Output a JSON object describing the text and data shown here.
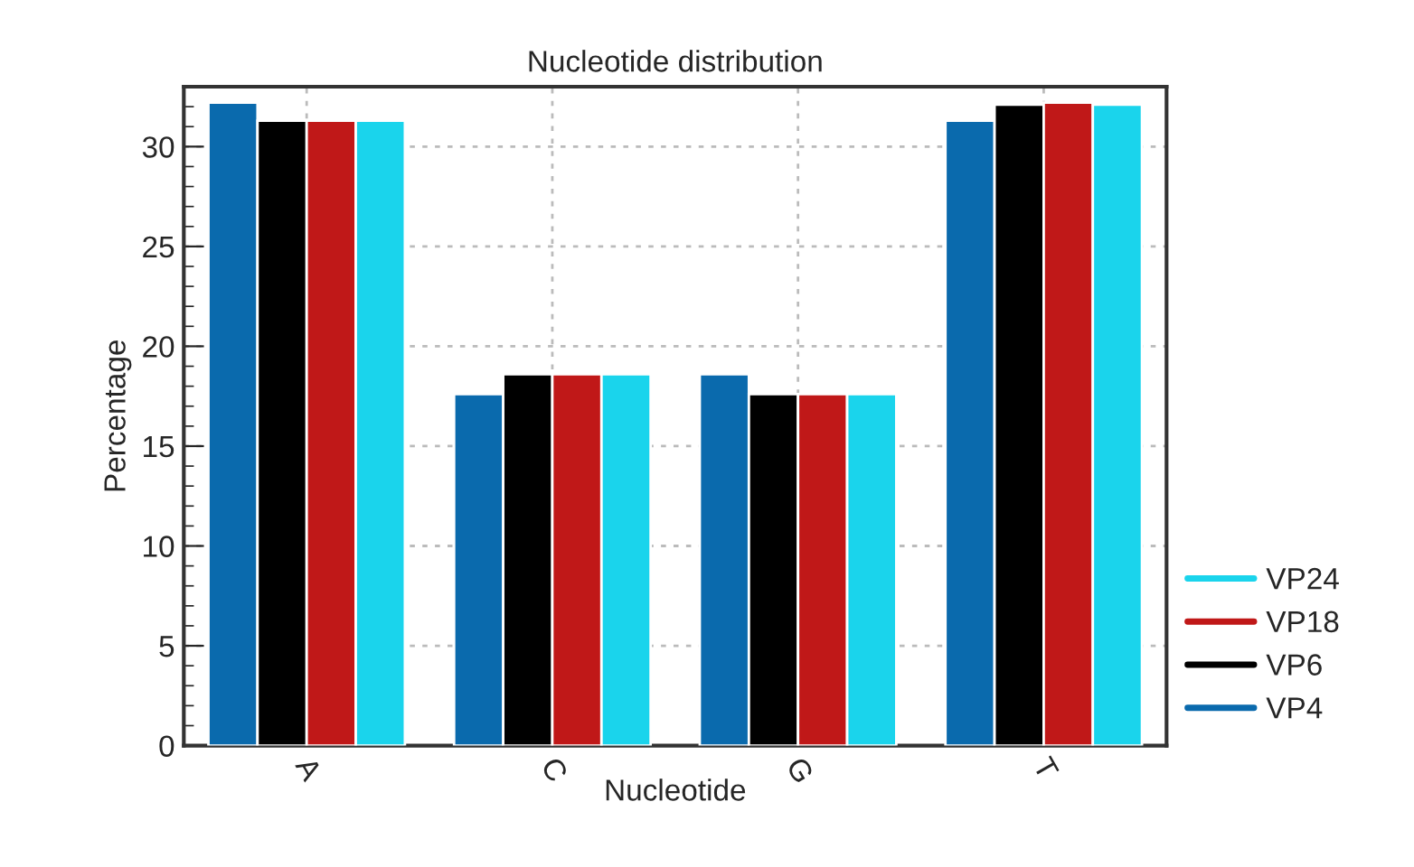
{
  "chart_data": {
    "type": "bar",
    "title": "Nucleotide distribution",
    "xlabel": "Nucleotide",
    "ylabel": "Percentage",
    "categories": [
      "A",
      "C",
      "G",
      "T"
    ],
    "series": [
      {
        "name": "VP4",
        "color": "#0a6aad",
        "values": [
          32.2,
          17.6,
          18.6,
          31.3
        ]
      },
      {
        "name": "VP6",
        "color": "#000000",
        "values": [
          31.3,
          18.6,
          17.6,
          32.1
        ]
      },
      {
        "name": "VP18",
        "color": "#c01818",
        "values": [
          31.3,
          18.6,
          17.6,
          32.2
        ]
      },
      {
        "name": "VP24",
        "color": "#1ad4ec",
        "values": [
          31.3,
          18.6,
          17.6,
          32.1
        ]
      }
    ],
    "ylim": [
      0,
      33
    ],
    "yticks": [
      0,
      5,
      10,
      15,
      20,
      25,
      30
    ],
    "grid": true,
    "legend": "bottom right"
  }
}
